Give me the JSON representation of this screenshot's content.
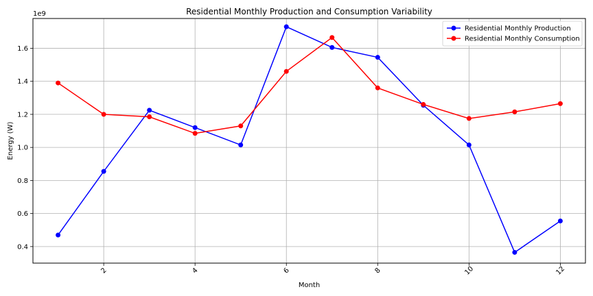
{
  "chart_data": {
    "type": "line",
    "title": "Residential Monthly Production and Consumption Variability",
    "xlabel": "Month",
    "ylabel": "Energy (W)",
    "y_offset_label": "1e9",
    "x": [
      1,
      2,
      3,
      4,
      5,
      6,
      7,
      8,
      9,
      10,
      11,
      12
    ],
    "xlim": [
      0.45,
      12.55
    ],
    "ylim": [
      0.3,
      1.78
    ],
    "y_scale_note": "values in units of 1e9 W",
    "x_ticks": [
      2,
      4,
      6,
      8,
      10,
      12
    ],
    "x_tick_labels": [
      "2",
      "4",
      "6",
      "8",
      "10",
      "12"
    ],
    "y_ticks": [
      0.4,
      0.6,
      0.8,
      1.0,
      1.2,
      1.4,
      1.6
    ],
    "y_tick_labels": [
      "0.4",
      "0.6",
      "0.8",
      "1.0",
      "1.2",
      "1.4",
      "1.6"
    ],
    "grid": true,
    "legend_position": "top-right",
    "series": [
      {
        "name": "Residential Monthly Production",
        "color": "#0000ff",
        "values": [
          0.47,
          0.855,
          1.225,
          1.12,
          1.015,
          1.73,
          1.605,
          1.545,
          1.255,
          1.015,
          0.365,
          0.555
        ]
      },
      {
        "name": "Residential Monthly Consumption",
        "color": "#ff0000",
        "values": [
          1.39,
          1.2,
          1.185,
          1.085,
          1.13,
          1.46,
          1.665,
          1.36,
          1.26,
          1.175,
          1.215,
          1.265
        ]
      }
    ]
  }
}
